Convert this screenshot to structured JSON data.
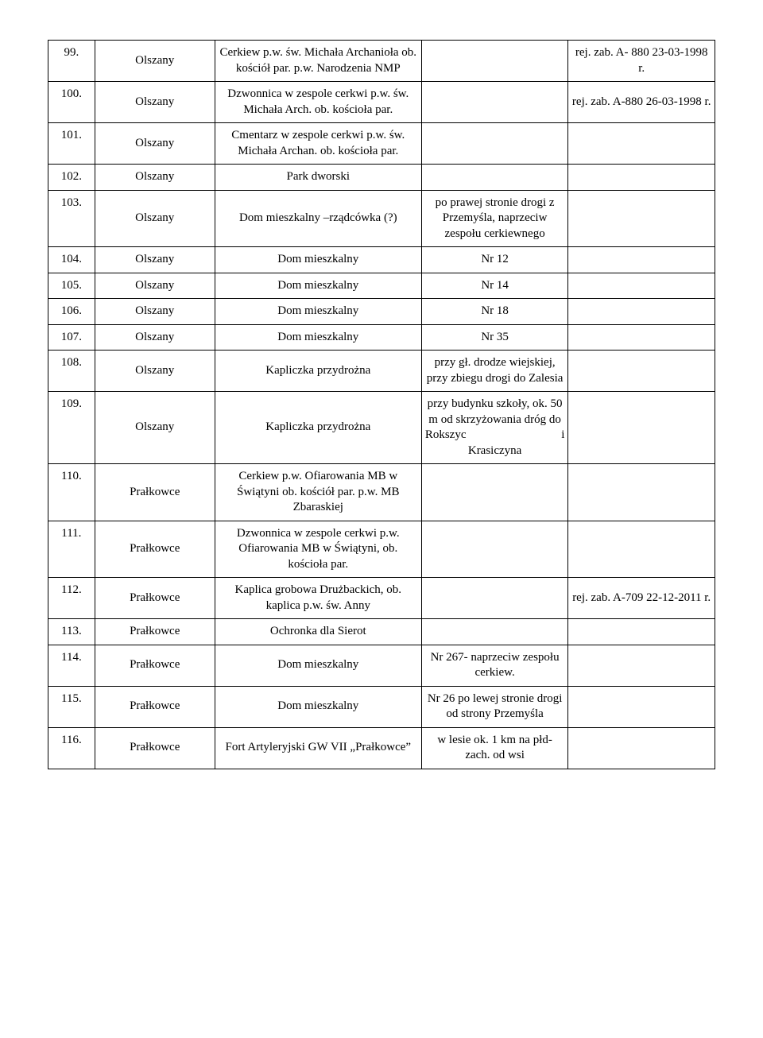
{
  "table": {
    "columns": {
      "widths_pct": [
        7,
        18,
        31,
        22,
        22
      ],
      "align": [
        "top-center",
        "center",
        "center",
        "center",
        "center"
      ]
    },
    "font": {
      "family": "Times New Roman",
      "size_pt": 12,
      "color": "#000000"
    },
    "border_color": "#000000",
    "background_color": "#ffffff",
    "rows": [
      {
        "num": "99.",
        "place": "Olszany",
        "desc": "Cerkiew p.w. św. Michała Archanioła ob. kościół par. p.w. Narodzenia NMP",
        "loc": "",
        "reg": "rej. zab. A- 880 23-03-1998 r."
      },
      {
        "num": "100.",
        "place": "Olszany",
        "desc": "Dzwonnica  w zespole cerkwi p.w. św. Michała Arch. ob. kościoła par.",
        "loc": "",
        "reg": "rej. zab. A-880 26-03-1998 r."
      },
      {
        "num": "101.",
        "place": "Olszany",
        "desc": "Cmentarz w zespole cerkwi p.w. św. Michała Archan. ob. kościoła par.",
        "loc": "",
        "reg": ""
      },
      {
        "num": "102.",
        "place": "Olszany",
        "desc": "Park dworski",
        "loc": "",
        "reg": ""
      },
      {
        "num": "103.",
        "place": "Olszany",
        "desc": "Dom mieszkalny –rządcówka (?)",
        "loc": "po prawej stronie drogi  z Przemyśla, naprzeciw zespołu cerkiewnego",
        "loc_center": true,
        "reg": ""
      },
      {
        "num": "104.",
        "place": "Olszany",
        "desc": "Dom mieszkalny",
        "loc": "Nr 12",
        "reg": ""
      },
      {
        "num": "105.",
        "place": "Olszany",
        "desc": "Dom mieszkalny",
        "loc": "Nr 14",
        "reg": ""
      },
      {
        "num": "106.",
        "place": "Olszany",
        "desc": "Dom mieszkalny",
        "loc": "Nr 18",
        "reg": ""
      },
      {
        "num": "107.",
        "place": "Olszany",
        "desc": "Dom mieszkalny",
        "loc": "Nr 35",
        "reg": ""
      },
      {
        "num": "108.",
        "place": "Olszany",
        "desc": "Kapliczka przydrożna",
        "loc": "przy gł. drodze wiejskiej, przy zbiegu drogi do Zalesia",
        "reg": ""
      },
      {
        "num": "109.",
        "place": "Olszany",
        "desc": "Kapliczka przydrożna",
        "loc_html": "przy budynku szkoły, ok. 50 m od skrzyżowania dróg do <span class=\"jw\" style=\"display:block\">Rokszyc i</span> Krasiczyna",
        "reg": ""
      },
      {
        "num": "110.",
        "place": "Prałkowce",
        "desc": "Cerkiew p.w. Ofiarowania MB w  Świątyni ob. kościół par. p.w. MB Zbaraskiej",
        "loc": "",
        "reg": ""
      },
      {
        "num": "111.",
        "place": "Prałkowce",
        "desc": "Dzwonnica w zespole cerkwi p.w. Ofiarowania MB w Świątyni, ob. kościoła par.",
        "loc": "",
        "reg": ""
      },
      {
        "num": "112.",
        "place": "Prałkowce",
        "desc": "Kaplica grobowa Drużbackich, ob. kaplica p.w. św. Anny",
        "loc": "",
        "reg": "rej. zab. A-709 22-12-2011 r."
      },
      {
        "num": "113.",
        "place": "Prałkowce",
        "desc": "Ochronka dla Sierot",
        "loc": "",
        "reg": ""
      },
      {
        "num": "114.",
        "place": "Prałkowce",
        "desc": "Dom mieszkalny",
        "loc": "Nr 267- naprzeciw zespołu cerkiew.",
        "reg": ""
      },
      {
        "num": "115.",
        "place": "Prałkowce",
        "desc": "Dom mieszkalny",
        "loc": "Nr 26  po lewej stronie drogi  od strony Przemyśla",
        "reg": ""
      },
      {
        "num": "116.",
        "place": "Prałkowce",
        "desc": "Fort Artyleryjski  GW VII „Prałkowce”",
        "loc": "w lesie ok. 1 km na płd-zach. od wsi",
        "reg": ""
      }
    ]
  }
}
